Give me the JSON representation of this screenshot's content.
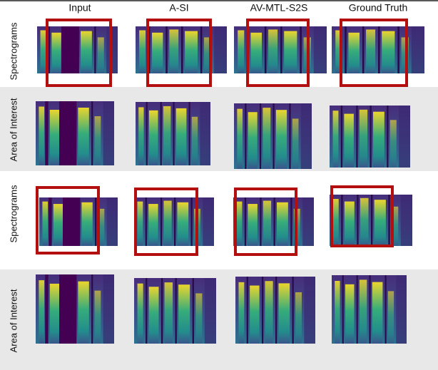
{
  "header": {
    "columns": [
      "Input",
      "A-SI",
      "AV-MTL-S2S",
      "Ground Truth"
    ]
  },
  "rows": [
    {
      "label": "Spectrograms"
    },
    {
      "label": "Area of Interest"
    },
    {
      "label": "Spectrograms"
    },
    {
      "label": "Area of Interest"
    }
  ]
}
